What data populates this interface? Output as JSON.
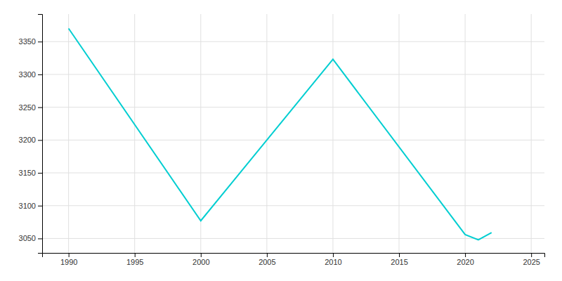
{
  "chart_data": {
    "type": "line",
    "x": [
      1990,
      2000,
      2010,
      2020,
      2021,
      2022
    ],
    "values": [
      3370,
      3077,
      3323,
      3056,
      3048,
      3059
    ],
    "color": "#00CED1",
    "xlim": [
      1988,
      2026
    ],
    "ylim": [
      3028,
      3392
    ],
    "xticks": [
      1990,
      1995,
      2000,
      2005,
      2010,
      2015,
      2020,
      2025
    ],
    "yticks": [
      3050,
      3100,
      3150,
      3200,
      3250,
      3300,
      3350
    ],
    "grid": true
  }
}
